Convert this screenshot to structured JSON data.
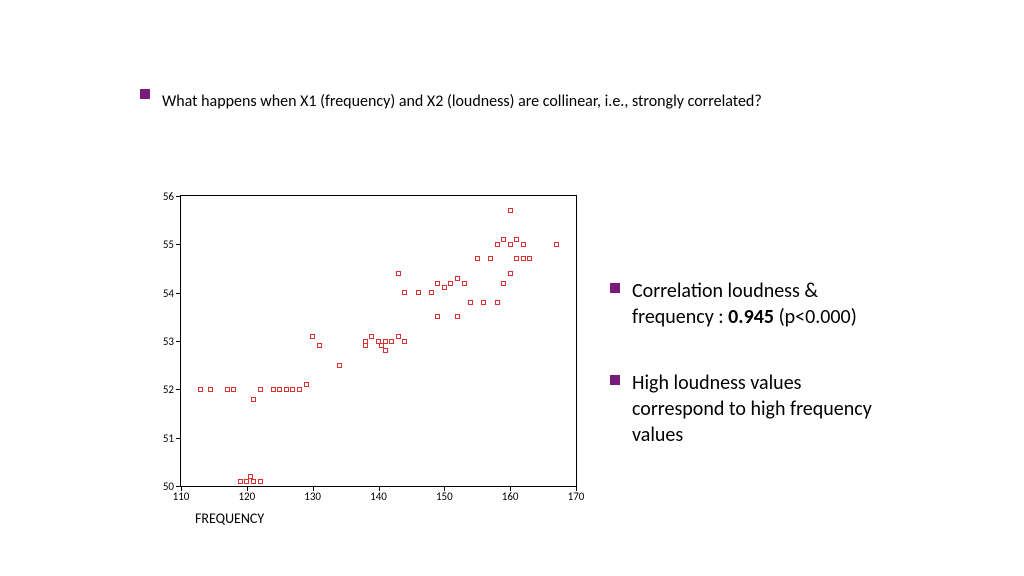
{
  "main_bullet": "What happens when X1 (frequency) and X2 (loudness) are collinear, i.e., strongly correlated?",
  "side": {
    "item1_pre": "Correlation loudness & frequency : ",
    "item1_bold": "0.945",
    "item1_post": " (p<0.000)",
    "item2": "High loudness values correspond to high frequency values"
  },
  "chart": {
    "type": "scatter",
    "xlabel": "FREQUENCY",
    "xlim": [
      110,
      170
    ],
    "ylim": [
      50,
      56
    ],
    "xticks": [
      110,
      120,
      130,
      140,
      150,
      160,
      170
    ],
    "yticks": [
      50,
      51,
      52,
      53,
      54,
      55,
      56
    ],
    "axis_fontsize": 11,
    "label_fontsize": 14,
    "background_color": "#ffffff",
    "border_color": "#000000",
    "marker": {
      "type": "square-open",
      "size": 5,
      "stroke": "#d93030",
      "fill": "none"
    },
    "points": [
      [
        113,
        52
      ],
      [
        114.5,
        52
      ],
      [
        117,
        52
      ],
      [
        118,
        52
      ],
      [
        119,
        50.1
      ],
      [
        120,
        50.1
      ],
      [
        120.5,
        50.2
      ],
      [
        121,
        50.1
      ],
      [
        122,
        50.1
      ],
      [
        121,
        51.8
      ],
      [
        122,
        52
      ],
      [
        124,
        52
      ],
      [
        125,
        52
      ],
      [
        126,
        52
      ],
      [
        127,
        52
      ],
      [
        128,
        52
      ],
      [
        129,
        52.1
      ],
      [
        130,
        53.1
      ],
      [
        131,
        52.9
      ],
      [
        134,
        52.5
      ],
      [
        138,
        53
      ],
      [
        139,
        53.1
      ],
      [
        140,
        53
      ],
      [
        140.5,
        52.9
      ],
      [
        141,
        53
      ],
      [
        142,
        53
      ],
      [
        143,
        53.1
      ],
      [
        144,
        53
      ],
      [
        138,
        52.9
      ],
      [
        141,
        52.8
      ],
      [
        144,
        54
      ],
      [
        146,
        54
      ],
      [
        143,
        54.4
      ],
      [
        148,
        54
      ],
      [
        149,
        54.2
      ],
      [
        150,
        54.1
      ],
      [
        151,
        54.2
      ],
      [
        152,
        54.3
      ],
      [
        153,
        54.2
      ],
      [
        149,
        53.5
      ],
      [
        152,
        53.5
      ],
      [
        154,
        53.8
      ],
      [
        156,
        53.8
      ],
      [
        158,
        53.8
      ],
      [
        155,
        54.7
      ],
      [
        157,
        54.7
      ],
      [
        158,
        55
      ],
      [
        159,
        55.1
      ],
      [
        160,
        55
      ],
      [
        161,
        55.1
      ],
      [
        162,
        55
      ],
      [
        159,
        54.2
      ],
      [
        160,
        54.4
      ],
      [
        161,
        54.7
      ],
      [
        162,
        54.7
      ],
      [
        163,
        54.7
      ],
      [
        160,
        55.7
      ],
      [
        167,
        55
      ]
    ]
  },
  "bullet_color": "#7a1a7a"
}
